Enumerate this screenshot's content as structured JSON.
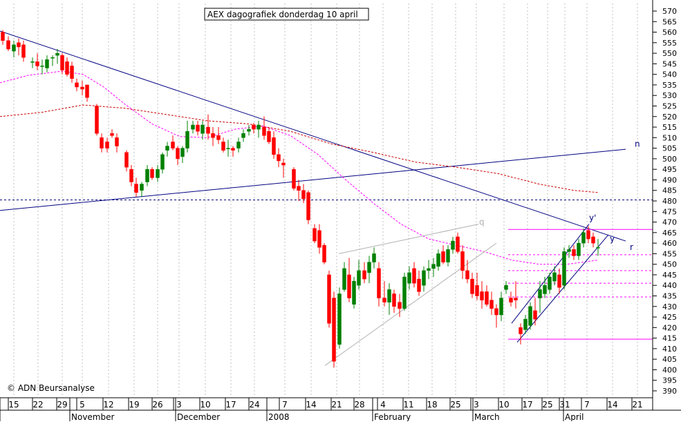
{
  "chart_data": {
    "type": "candlestick",
    "title": "AEX dagografiek donderdag 10 april",
    "watermark": "© ADN Beursanalyse",
    "y_ticks": [
      390,
      395,
      400,
      405,
      410,
      415,
      420,
      425,
      430,
      435,
      440,
      445,
      450,
      455,
      460,
      465,
      470,
      475,
      480,
      485,
      490,
      495,
      500,
      505,
      510,
      515,
      520,
      525,
      530,
      535,
      540,
      545,
      550,
      555,
      560,
      565,
      570
    ],
    "ylim": [
      386,
      573
    ],
    "date_labels": [
      "15",
      "22",
      "29",
      "5",
      "12",
      "19",
      "26",
      "3",
      "10",
      "17",
      "24",
      "7",
      "14",
      "21",
      "28",
      "4",
      "11",
      "18",
      "25",
      "3",
      "10",
      "17",
      "25",
      "31",
      "7",
      "14",
      "21"
    ],
    "month_labels": [
      "November",
      "December",
      "2008",
      "February",
      "March",
      "April"
    ],
    "trendline_labels": [
      "n",
      "q",
      "y'",
      "y",
      "r"
    ],
    "grid": true,
    "colors": {
      "up": "#008000",
      "down": "#ff0000",
      "trend": "#000080",
      "ma_short": "#ff00ff",
      "ma_long": "#cc0000",
      "channel_gray": "#b0b0b0",
      "magenta_levels": "#ff00ff"
    }
  }
}
